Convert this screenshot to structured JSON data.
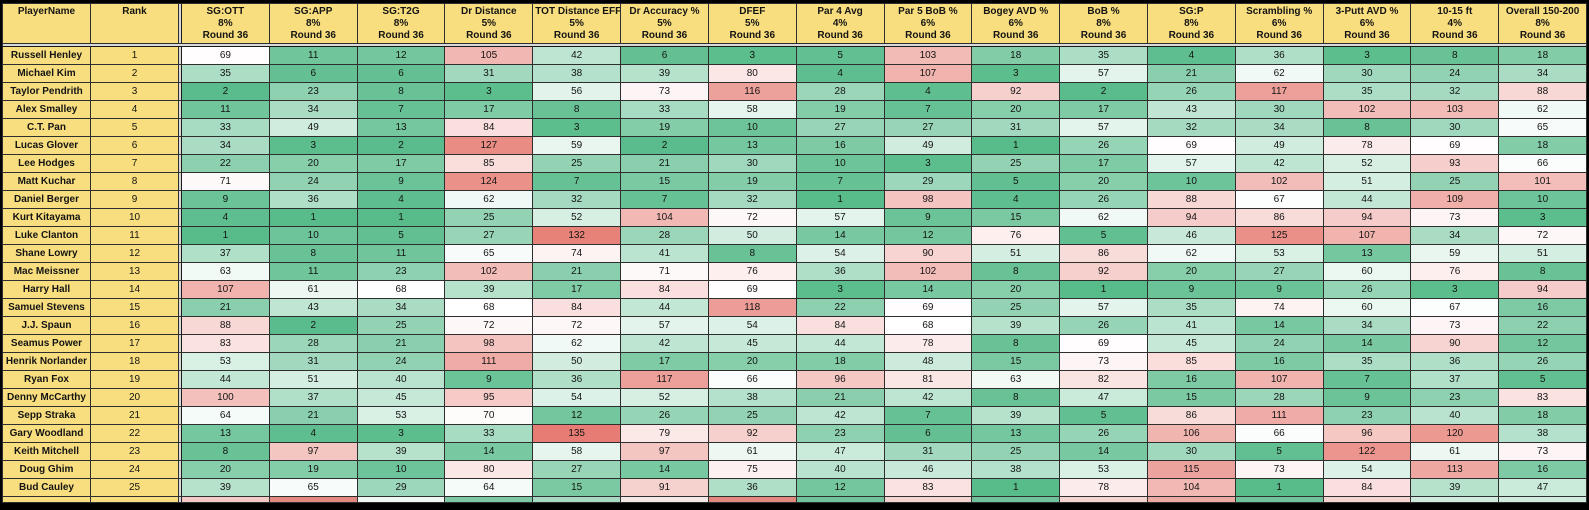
{
  "sheet": {
    "round_label": "Round 36",
    "palette": {
      "header_bg": "#f8de7e",
      "scale_green": "#57bb8a",
      "scale_white": "#ffffff",
      "scale_red": "#e67c73",
      "grid_line": "#2e2e2e",
      "pane_divider": "#d9d9d9",
      "frame": "#000000"
    },
    "color_scale": {
      "min": 1,
      "mid": 68,
      "max": 135
    },
    "columns": [
      {
        "label": "PlayerName",
        "weight": "",
        "round": ""
      },
      {
        "label": "Rank",
        "weight": "",
        "round": ""
      },
      {
        "label": "SG:OTT",
        "weight": "8%",
        "round": "Round 36"
      },
      {
        "label": "SG:APP",
        "weight": "8%",
        "round": "Round 36"
      },
      {
        "label": "SG:T2G",
        "weight": "8%",
        "round": "Round 36"
      },
      {
        "label": "Dr Distance",
        "weight": "5%",
        "round": "Round 36"
      },
      {
        "label": "TOT Distance EFF",
        "weight": "5%",
        "round": "Round 36"
      },
      {
        "label": "Dr Accuracy %",
        "weight": "5%",
        "round": "Round 36"
      },
      {
        "label": "DFEF",
        "weight": "5%",
        "round": "Round 36"
      },
      {
        "label": "Par 4 Avg",
        "weight": "4%",
        "round": "Round 36"
      },
      {
        "label": "Par 5 BoB %",
        "weight": "6%",
        "round": "Round 36"
      },
      {
        "label": "Bogey AVD %",
        "weight": "6%",
        "round": "Round 36"
      },
      {
        "label": "BoB %",
        "weight": "8%",
        "round": "Round 36"
      },
      {
        "label": "SG:P",
        "weight": "8%",
        "round": "Round 36"
      },
      {
        "label": "Scrambling %",
        "weight": "6%",
        "round": "Round 36"
      },
      {
        "label": "3-Putt AVD %",
        "weight": "6%",
        "round": "Round 36"
      },
      {
        "label": "10-15 ft",
        "weight": "4%",
        "round": "Round 36"
      },
      {
        "label": "Overall 150-200",
        "weight": "8%",
        "round": "Round 36"
      }
    ],
    "players": [
      {
        "name": "Russell Henley",
        "rank": 1,
        "values": [
          69,
          11,
          12,
          105,
          42,
          6,
          3,
          5,
          103,
          18,
          35,
          4,
          36,
          3,
          8,
          18
        ]
      },
      {
        "name": "Michael Kim",
        "rank": 2,
        "values": [
          35,
          6,
          6,
          31,
          38,
          39,
          80,
          4,
          107,
          3,
          57,
          21,
          62,
          30,
          24,
          34
        ]
      },
      {
        "name": "Taylor Pendrith",
        "rank": 3,
        "values": [
          2,
          23,
          8,
          3,
          56,
          73,
          116,
          28,
          4,
          92,
          2,
          26,
          117,
          35,
          32,
          88
        ]
      },
      {
        "name": "Alex Smalley",
        "rank": 4,
        "values": [
          11,
          34,
          7,
          17,
          8,
          33,
          58,
          19,
          7,
          20,
          17,
          43,
          30,
          102,
          103,
          62
        ]
      },
      {
        "name": "C.T. Pan",
        "rank": 5,
        "values": [
          33,
          49,
          13,
          84,
          3,
          19,
          10,
          27,
          27,
          31,
          57,
          32,
          34,
          8,
          30,
          65
        ]
      },
      {
        "name": "Lucas Glover",
        "rank": 6,
        "values": [
          34,
          3,
          2,
          127,
          59,
          2,
          13,
          16,
          49,
          1,
          26,
          69,
          49,
          78,
          69,
          18
        ]
      },
      {
        "name": "Lee Hodges",
        "rank": 7,
        "values": [
          22,
          20,
          17,
          85,
          25,
          21,
          30,
          10,
          3,
          25,
          17,
          57,
          42,
          52,
          93,
          66
        ]
      },
      {
        "name": "Matt Kuchar",
        "rank": 8,
        "values": [
          71,
          24,
          9,
          124,
          7,
          15,
          19,
          7,
          29,
          5,
          20,
          10,
          102,
          51,
          25,
          101
        ]
      },
      {
        "name": "Daniel Berger",
        "rank": 9,
        "values": [
          9,
          36,
          4,
          62,
          32,
          7,
          32,
          1,
          98,
          4,
          26,
          88,
          67,
          44,
          109,
          10
        ]
      },
      {
        "name": "Kurt Kitayama",
        "rank": 10,
        "values": [
          4,
          1,
          1,
          25,
          52,
          104,
          72,
          57,
          9,
          15,
          62,
          94,
          86,
          94,
          73,
          3
        ]
      },
      {
        "name": "Luke Clanton",
        "rank": 11,
        "values": [
          1,
          10,
          5,
          27,
          132,
          28,
          50,
          14,
          12,
          76,
          5,
          46,
          125,
          107,
          34,
          72
        ]
      },
      {
        "name": "Shane Lowry",
        "rank": 12,
        "values": [
          37,
          8,
          11,
          65,
          74,
          41,
          8,
          54,
          90,
          51,
          86,
          62,
          53,
          13,
          59,
          51
        ]
      },
      {
        "name": "Mac Meissner",
        "rank": 13,
        "values": [
          63,
          11,
          23,
          102,
          21,
          71,
          76,
          36,
          102,
          8,
          92,
          20,
          27,
          60,
          76,
          8
        ]
      },
      {
        "name": "Harry Hall",
        "rank": 14,
        "values": [
          107,
          61,
          68,
          39,
          17,
          84,
          69,
          3,
          14,
          20,
          1,
          9,
          9,
          26,
          3,
          94
        ]
      },
      {
        "name": "Samuel Stevens",
        "rank": 15,
        "values": [
          21,
          43,
          34,
          68,
          84,
          44,
          118,
          22,
          69,
          25,
          57,
          35,
          74,
          60,
          67,
          16
        ]
      },
      {
        "name": "J.J. Spaun",
        "rank": 16,
        "values": [
          88,
          2,
          25,
          72,
          72,
          57,
          54,
          84,
          68,
          39,
          26,
          41,
          14,
          34,
          73,
          22
        ]
      },
      {
        "name": "Seamus Power",
        "rank": 17,
        "values": [
          83,
          28,
          21,
          98,
          62,
          42,
          45,
          44,
          78,
          8,
          69,
          45,
          24,
          14,
          90,
          12
        ]
      },
      {
        "name": "Henrik Norlander",
        "rank": 18,
        "values": [
          53,
          31,
          24,
          111,
          50,
          17,
          20,
          18,
          48,
          15,
          73,
          85,
          16,
          35,
          36,
          26
        ]
      },
      {
        "name": "Ryan Fox",
        "rank": 19,
        "values": [
          44,
          51,
          40,
          9,
          36,
          117,
          66,
          96,
          81,
          63,
          82,
          16,
          107,
          7,
          37,
          5
        ]
      },
      {
        "name": "Denny McCarthy",
        "rank": 20,
        "values": [
          100,
          37,
          45,
          95,
          54,
          52,
          38,
          21,
          42,
          8,
          47,
          15,
          28,
          9,
          23,
          83
        ]
      },
      {
        "name": "Sepp Straka",
        "rank": 21,
        "values": [
          64,
          21,
          53,
          70,
          12,
          26,
          25,
          42,
          7,
          39,
          5,
          86,
          111,
          23,
          40,
          18
        ]
      },
      {
        "name": "Gary Woodland",
        "rank": 22,
        "values": [
          13,
          4,
          3,
          33,
          135,
          79,
          92,
          23,
          6,
          13,
          26,
          106,
          66,
          96,
          120,
          38
        ]
      },
      {
        "name": "Keith Mitchell",
        "rank": 23,
        "values": [
          8,
          97,
          39,
          14,
          58,
          97,
          61,
          47,
          31,
          25,
          14,
          30,
          5,
          122,
          61,
          73
        ]
      },
      {
        "name": "Doug Ghim",
        "rank": 24,
        "values": [
          20,
          19,
          10,
          80,
          27,
          14,
          75,
          40,
          46,
          38,
          53,
          115,
          73,
          54,
          113,
          16
        ]
      },
      {
        "name": "Bud Cauley",
        "rank": 25,
        "values": [
          39,
          65,
          29,
          64,
          15,
          91,
          36,
          12,
          83,
          1,
          78,
          104,
          1,
          84,
          39,
          47
        ]
      }
    ],
    "partial_row": {
      "cell_colors": [
        "#f2c9c5",
        "#e2897f",
        "#eef7f2",
        "#7cc8a4",
        "#a5d9c1",
        "#f3e8e6",
        "#e2897f",
        "#6fc29b",
        "#f4d4d0",
        "#6fc29b",
        "#f4d4d0",
        "#eba9a1",
        "#6fc29b",
        "#f4d4d0",
        "#cdeadd",
        "#cdeadd"
      ]
    }
  }
}
